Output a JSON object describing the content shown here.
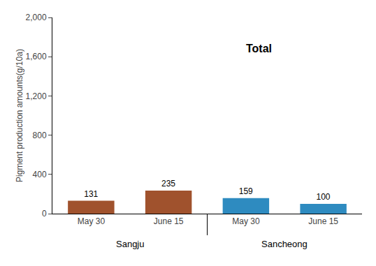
{
  "chart_data": {
    "type": "bar",
    "categories": [
      "May 30",
      "June 15",
      "May 30",
      "June 15"
    ],
    "values": [
      131,
      235,
      159,
      100
    ],
    "colors": [
      "#A0522D",
      "#A0522D",
      "#2E8BC0",
      "#2E8BC0"
    ],
    "group_labels": [
      "Sangju",
      "Sancheong"
    ],
    "ylabel": "Pigment production amounts(g/10a)",
    "ylim": [
      0,
      2000
    ],
    "yticks": [
      0,
      400,
      800,
      {
        "value": 1200,
        "label": "1,200"
      },
      {
        "value": 1600,
        "label": "1,600"
      },
      {
        "value": 2000,
        "label": "2,000"
      }
    ],
    "annotations": [
      "Total"
    ],
    "data_labels": true,
    "grid": false
  }
}
